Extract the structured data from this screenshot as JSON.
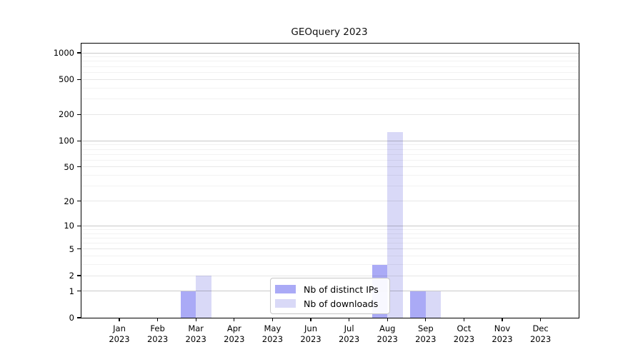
{
  "chart_data": {
    "type": "bar",
    "title": "GEOquery 2023",
    "categories": [
      "Jan 2023",
      "Feb 2023",
      "Mar 2023",
      "Apr 2023",
      "May 2023",
      "Jun 2023",
      "Jul 2023",
      "Aug 2023",
      "Sep 2023",
      "Oct 2023",
      "Nov 2023",
      "Dec 2023"
    ],
    "series": [
      {
        "name": "Nb of distinct IPs",
        "color": "#aaaaf6",
        "values": [
          0,
          0,
          1,
          0,
          0,
          0,
          0,
          3,
          1,
          0,
          0,
          0
        ]
      },
      {
        "name": "Nb of downloads",
        "color": "#d9d9f7",
        "values": [
          0,
          0,
          2,
          0,
          0,
          0,
          0,
          125,
          1,
          0,
          0,
          0
        ]
      }
    ],
    "xlabel": "",
    "ylabel": "",
    "y_scale": "log1p",
    "ylim": [
      0,
      1275
    ],
    "y_ticks": [
      0,
      1,
      2,
      5,
      10,
      20,
      50,
      100,
      200,
      500,
      1000
    ],
    "y_major_gridline_values": [
      1,
      10,
      100,
      1000
    ],
    "y_minor_gridline_values": [
      3,
      4,
      6,
      7,
      8,
      9,
      30,
      40,
      60,
      70,
      80,
      90,
      300,
      400,
      600,
      700,
      800,
      900
    ],
    "grid": true,
    "legend": {
      "position": "inside-bottom-center"
    },
    "colors": {
      "axis": "#000000",
      "background": "#ffffff",
      "major_grid_on_white": "#c9c9c9",
      "tick_grid_on_white": "#e7e7e7",
      "minor_grid_on_white": "#f3f3f3"
    }
  }
}
